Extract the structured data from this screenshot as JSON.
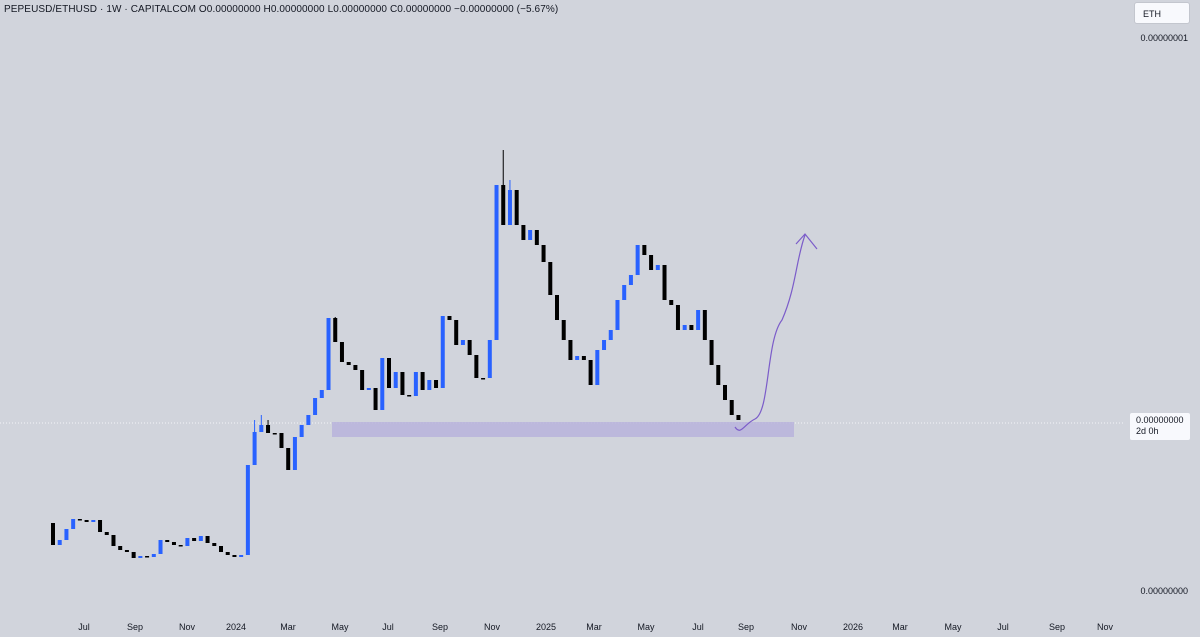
{
  "legend": {
    "symbol": "PEPEUSD/ETHUSD",
    "interval": "1W",
    "source": "CAPITALCOM",
    "open": "O0.00000000",
    "high": "H0.00000000",
    "low": "L0.00000000",
    "close": "C0.00000000",
    "change": "−0.00000000 (−5.67%)"
  },
  "currency_button": "ETH",
  "price_axis": {
    "top_label": "0.00000001",
    "bottom_label": "0.00000000",
    "current_price": "0.00000000",
    "countdown": "2d 0h"
  },
  "time_axis": [
    "Jul",
    "Sep",
    "Nov",
    "2024",
    "Mar",
    "May",
    "Jul",
    "Sep",
    "Nov",
    "2025",
    "Mar",
    "May",
    "Jul",
    "Sep",
    "Nov",
    "2026",
    "Mar",
    "May",
    "Jul",
    "Sep",
    "Nov"
  ],
  "colors": {
    "background": "#d1d4dc",
    "up_candle": "#2962ff",
    "down_candle": "#000000",
    "support_zone": "#b8b3dc",
    "projection_path": "#7b5cc9"
  },
  "chart_data": {
    "type": "candlestick",
    "interval": "1W",
    "x_range": [
      "2023-06",
      "2026-11"
    ],
    "y_scale": "log",
    "weeks_from": "2023-06-12",
    "candles_ohlc_relative": [
      [
        523,
        550,
        518,
        545
      ],
      [
        545,
        552,
        538,
        540
      ],
      [
        540,
        548,
        522,
        529
      ],
      [
        529,
        532,
        516,
        519
      ],
      [
        519,
        522,
        505,
        520
      ],
      [
        520,
        525,
        512,
        522
      ],
      [
        522,
        530,
        516,
        520
      ],
      [
        520,
        527,
        510,
        532
      ],
      [
        532,
        540,
        525,
        535
      ],
      [
        535,
        545,
        530,
        546
      ],
      [
        546,
        554,
        538,
        550
      ],
      [
        550,
        555,
        545,
        552
      ],
      [
        552,
        560,
        547,
        558
      ],
      [
        558,
        561,
        550,
        556
      ],
      [
        556,
        560,
        549,
        557
      ],
      [
        557,
        562,
        552,
        554
      ],
      [
        554,
        558,
        540,
        540
      ],
      [
        540,
        546,
        533,
        542
      ],
      [
        542,
        547,
        532,
        545
      ],
      [
        545,
        552,
        538,
        546
      ],
      [
        546,
        550,
        537,
        538
      ],
      [
        538,
        544,
        532,
        541
      ],
      [
        541,
        546,
        533,
        536
      ],
      [
        536,
        543,
        534,
        543
      ],
      [
        543,
        549,
        536,
        546
      ],
      [
        546,
        553,
        541,
        552
      ],
      [
        552,
        560,
        546,
        555
      ],
      [
        555,
        560,
        550,
        557
      ],
      [
        557,
        561,
        553,
        555
      ],
      [
        555,
        560,
        474,
        465
      ],
      [
        465,
        420,
        400,
        432
      ],
      [
        432,
        415,
        400,
        425
      ],
      [
        425,
        420,
        404,
        433
      ],
      [
        433,
        436,
        408,
        433
      ],
      [
        433,
        440,
        420,
        448
      ],
      [
        448,
        480,
        441,
        470
      ],
      [
        470,
        466,
        441,
        437
      ],
      [
        437,
        442,
        420,
        425
      ],
      [
        425,
        428,
        405,
        415
      ],
      [
        415,
        420,
        398,
        398
      ],
      [
        398,
        400,
        380,
        390
      ],
      [
        390,
        395,
        378,
        318
      ],
      [
        318,
        317,
        312,
        342
      ],
      [
        342,
        355,
        330,
        362
      ],
      [
        362,
        370,
        345,
        365
      ],
      [
        365,
        372,
        357,
        370
      ],
      [
        370,
        380,
        365,
        390
      ],
      [
        390,
        395,
        370,
        388
      ],
      [
        388,
        395,
        380,
        410
      ],
      [
        410,
        412,
        390,
        358
      ],
      [
        358,
        365,
        345,
        388
      ],
      [
        388,
        395,
        375,
        372
      ],
      [
        372,
        380,
        362,
        395
      ],
      [
        395,
        400,
        380,
        396
      ],
      [
        396,
        400,
        385,
        372
      ],
      [
        372,
        385,
        365,
        390
      ],
      [
        390,
        395,
        376,
        380
      ],
      [
        380,
        385,
        360,
        388
      ],
      [
        388,
        395,
        375,
        316
      ],
      [
        316,
        325,
        310,
        320
      ],
      [
        320,
        336,
        310,
        345
      ],
      [
        345,
        350,
        330,
        340
      ],
      [
        340,
        355,
        336,
        355
      ],
      [
        355,
        362,
        345,
        378
      ],
      [
        378,
        380,
        361,
        378
      ],
      [
        378,
        372,
        330,
        340
      ],
      [
        340,
        345,
        130,
        185
      ],
      [
        185,
        150,
        180,
        225
      ],
      [
        225,
        180,
        215,
        190
      ],
      [
        190,
        210,
        170,
        225
      ],
      [
        225,
        240,
        200,
        240
      ],
      [
        240,
        245,
        225,
        230
      ],
      [
        230,
        230,
        200,
        245
      ],
      [
        245,
        255,
        225,
        262
      ],
      [
        262,
        270,
        245,
        295
      ],
      [
        295,
        300,
        290,
        320
      ],
      [
        320,
        330,
        300,
        340
      ],
      [
        340,
        345,
        320,
        360
      ],
      [
        360,
        360,
        345,
        356
      ],
      [
        356,
        362,
        345,
        360
      ],
      [
        360,
        365,
        330,
        385
      ],
      [
        385,
        390,
        350,
        350
      ],
      [
        350,
        355,
        325,
        340
      ],
      [
        340,
        345,
        325,
        330
      ],
      [
        330,
        330,
        300,
        300
      ],
      [
        300,
        310,
        280,
        285
      ],
      [
        285,
        295,
        265,
        275
      ],
      [
        275,
        280,
        260,
        245
      ],
      [
        245,
        250,
        220,
        255
      ],
      [
        255,
        260,
        240,
        270
      ],
      [
        270,
        275,
        250,
        265
      ],
      [
        265,
        275,
        255,
        300
      ],
      [
        300,
        305,
        280,
        305
      ],
      [
        305,
        320,
        280,
        330
      ],
      [
        330,
        335,
        310,
        325
      ],
      [
        325,
        330,
        305,
        330
      ],
      [
        330,
        335,
        300,
        310
      ],
      [
        310,
        325,
        305,
        340
      ],
      [
        340,
        345,
        330,
        365
      ],
      [
        365,
        370,
        350,
        385
      ],
      [
        385,
        390,
        375,
        400
      ],
      [
        400,
        405,
        390,
        415
      ],
      [
        415,
        420,
        410,
        420
      ]
    ],
    "support_zone": {
      "x_start": "2024-02",
      "x_end": "2025-11"
    },
    "projection": {
      "direction": "up",
      "from": "2025-08",
      "to": "2025-11"
    }
  }
}
